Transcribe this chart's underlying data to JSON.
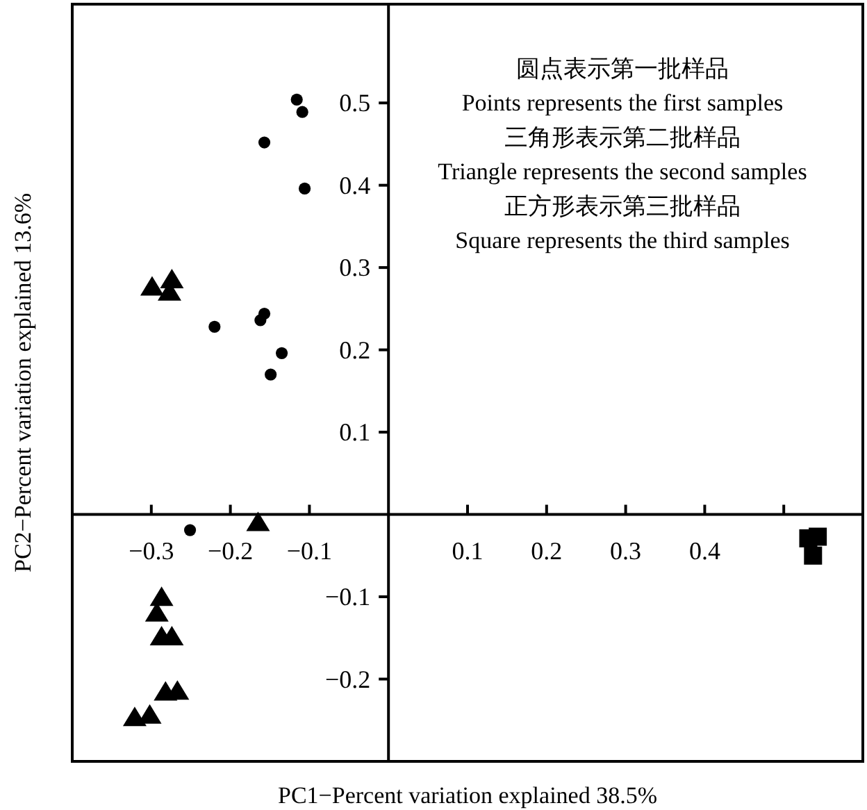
{
  "chart_data": {
    "type": "scatter",
    "xlabel": "PC1−Percent variation explained 38.5%",
    "ylabel": "PC2−Percent variation explained 13.6%",
    "annotations": [
      "圆点表示第一批样品",
      "Points represents the first samples",
      "三角形表示第二批样品",
      "Triangle represents the second samples",
      "正方形表示第三批样品",
      "Square represents the third samples"
    ],
    "xlim": [
      -0.4,
      0.6
    ],
    "ylim": [
      -0.3,
      0.62
    ],
    "xticks": [
      {
        "value": -0.3,
        "label": "−0.3"
      },
      {
        "value": -0.2,
        "label": "−0.2"
      },
      {
        "value": -0.1,
        "label": "−0.1"
      },
      0.1,
      0.2,
      0.3,
      0.4,
      {
        "value": 0.5,
        "label": null
      }
    ],
    "yticks": [
      {
        "value": -0.2,
        "label": "−0.2"
      },
      {
        "value": -0.1,
        "label": "−0.1"
      },
      0.1,
      0.2,
      0.3,
      0.4,
      0.5
    ],
    "grid": false,
    "series": [
      {
        "marker": "circle",
        "color": "#000000",
        "x": [
          -0.116,
          -0.109,
          -0.157,
          -0.106,
          -0.22,
          -0.157,
          -0.162,
          -0.135,
          -0.149,
          -0.251
        ],
        "values": [
          0.504,
          0.489,
          0.452,
          0.396,
          0.228,
          0.244,
          0.236,
          0.196,
          0.17,
          -0.019
        ]
      },
      {
        "marker": "triangle",
        "color": "#000000",
        "x": [
          -0.299,
          -0.274,
          -0.277,
          -0.165,
          -0.287,
          -0.293,
          -0.287,
          -0.274,
          -0.282,
          -0.267,
          -0.321,
          -0.302
        ],
        "values": [
          0.276,
          0.285,
          0.27,
          -0.01,
          -0.101,
          -0.12,
          -0.149,
          -0.149,
          -0.216,
          -0.215,
          -0.247,
          -0.244
        ]
      },
      {
        "marker": "square",
        "color": "#000000",
        "x": [
          0.531,
          0.543,
          0.537
        ],
        "values": [
          -0.029,
          -0.027,
          -0.05
        ]
      }
    ]
  }
}
